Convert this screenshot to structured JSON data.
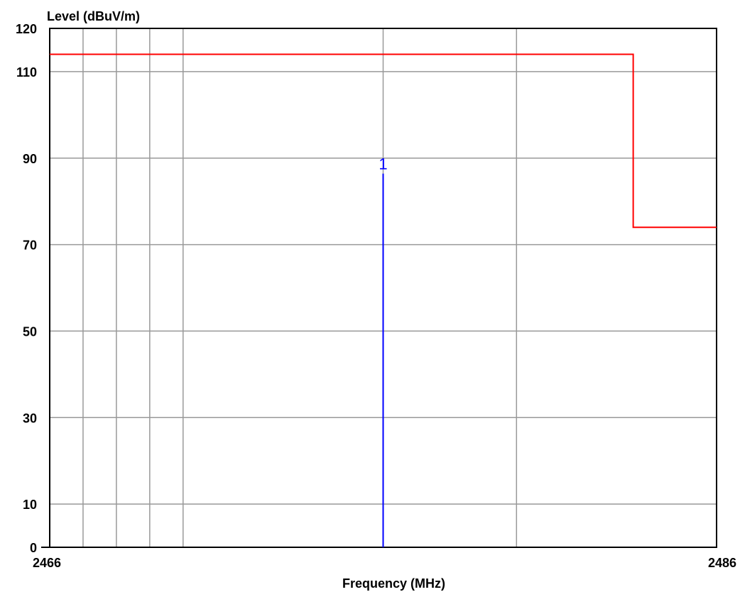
{
  "chart_data": {
    "type": "line",
    "title": "",
    "ylabel": "Level (dBuV/m)",
    "xlabel": "Frequency (MHz)",
    "xlim": [
      2466,
      2486
    ],
    "ylim": [
      0,
      120
    ],
    "x_tick_labels": [
      {
        "value": 2466,
        "label": "2466"
      },
      {
        "value": 2486,
        "label": "2486"
      }
    ],
    "y_ticks": [
      0,
      10,
      30,
      50,
      70,
      90,
      110,
      120
    ],
    "y_tick_labels": [
      "0",
      "10",
      "30",
      "50",
      "70",
      "90",
      "110",
      "120"
    ],
    "grid": true,
    "x_gridlines": [
      2467,
      2468,
      2469,
      2470,
      2476,
      2480,
      2486
    ],
    "y_gridlines": [
      10,
      30,
      50,
      70,
      90,
      110
    ],
    "series": [
      {
        "kind": "limit-line",
        "color": "#ff0000",
        "x": [
          2466,
          2483.5,
          2483.5,
          2486
        ],
        "y": [
          114,
          114,
          74,
          74
        ]
      },
      {
        "kind": "marker-spike",
        "color": "#0000ff",
        "label": "1",
        "x": 2476,
        "y": 86.4
      }
    ]
  }
}
